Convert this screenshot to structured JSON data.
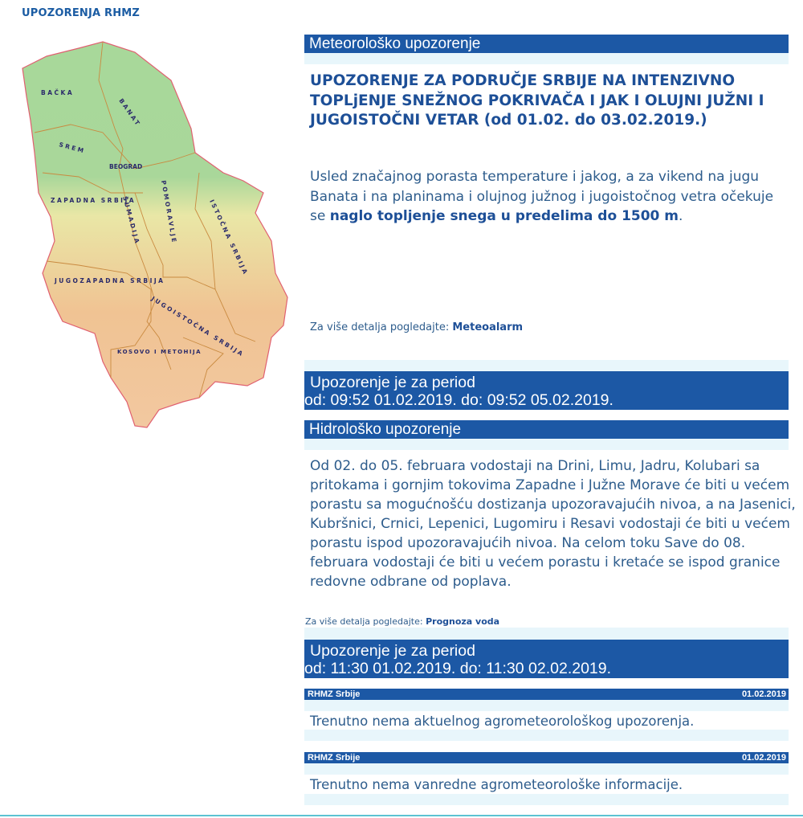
{
  "page": {
    "title": "UPOZORENJA RHMZ"
  },
  "map": {
    "regions": [
      "BAČKA",
      "BANAT",
      "SREM",
      "BEOGRAD",
      "ZAPADNA SRBIJA",
      "ŠUMADIJA",
      "POMORAVLJE",
      "ISTOČNA SRBIJA",
      "JUGOZAPADNA SRBIJA",
      "JUGOISTOČNA SRBIJA",
      "KOSOVO I METOHIJA"
    ]
  },
  "meteo": {
    "header": "Meteorološko upozorenje",
    "headline": "UPOZORENJE ZA PODRUČJE SRBIJE NA INTENZIVNO TOPLjENJE SNEŽNOG POKRIVAČA I JAK I OLUJNI JUŽNI I JUGOISTOČNI VETAR (od 01.02. do 03.02.2019.)",
    "body_plain": "Usled značajnog porasta temperature i jakog, a za vikend na jugu Banata i na planinama i olujnog južnog i jugoistočnog vetra očekuje se ",
    "body_bold": "naglo topljenje snega u predelima do 1500 m",
    "body_end": ".",
    "details_label": "Za više detalja pogledajte: ",
    "details_link": "Meteoalarm",
    "period_title": "Upozorenje je za period",
    "period_range": "od:  09:52 01.02.2019.  do: 09:52 05.02.2019."
  },
  "hidro": {
    "header": "Hidrološko upozorenje",
    "body": "Od 02. do 05. februara vodostaji na Drini, Limu, Jadru, Kolubari sa pritokama i gornjim tokovima Zapadne i Južne Morave će biti u većem porastu sa mogućnošću dostizanja upozoravajućih nivoa, a na Jasenici, Kubršnici, Crnici, Lepenici, Lugomiru i Resavi vodostaji će biti u većem porastu ispod upozoravajućih nivoa. Na celom toku Save do 08. februara vodostaji će biti u većem porastu i kretaće se ispod granice redovne odbrane od poplava.",
    "details_label": "Za više detalja pogledajte: ",
    "details_link": "Prognoza voda",
    "period_title": "Upozorenje je za period",
    "period_range": "od:  11:30 01.02.2019.  do: 11:30 02.02.2019."
  },
  "agro": [
    {
      "source": "RHMZ Srbije",
      "date": "01.02.2019",
      "text": "Trenutno nema aktuelnog agrometeorološkog upozorenja."
    },
    {
      "source": "RHMZ Srbije",
      "date": "01.02.2019",
      "text": "Trenutno nema vanredne agrometeorološke informacije."
    }
  ],
  "colors": {
    "header_bar": "#1c58a5",
    "strip": "#e8f6fb",
    "text": "#2d5c8c",
    "title": "#1b5ca3"
  }
}
